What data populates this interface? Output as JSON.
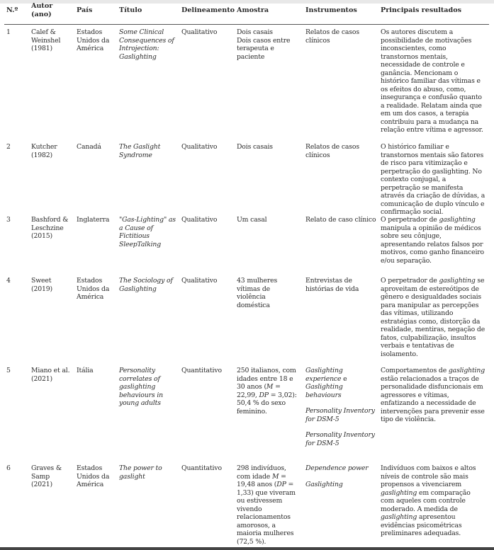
{
  "headers": [
    "N.º",
    "Autor (ano)",
    "País",
    "Título",
    "Delineamento",
    "Amostra",
    "Instrumentos",
    "Principais resultados"
  ],
  "rows": [
    {
      "n": "1",
      "autor": "Calef & Weinshel (1981)",
      "pais": "Estados Unidos da América",
      "titulo": "Some Clinical Consequences of Introjection: Gaslighting",
      "delineamento": "Qualitativo",
      "amostra": [
        {
          "t": "Dois casais\nDois casos entre terapeuta e paciente"
        }
      ],
      "instrumentos": [
        {
          "t": "Relatos de casos clínicos"
        }
      ],
      "resultados": [
        {
          "t": "Os autores discutem a possibilidade de motivações inconscientes, como transtornos mentais, necessidade de controle e ganância. Mencionam o histórico familiar das vítimas e os efeitos do abuso, como, insegurança e confusão quanto a realidade. Relatam ainda que em um dos casos, a terapia contribuiu para a mudança na relação entre vítima e agressor."
        }
      ]
    },
    {
      "n": "2",
      "autor": "Kutcher (1982)",
      "pais": "Canadá",
      "titulo": "The Gaslight Syndrome",
      "delineamento": "Qualitativo",
      "amostra": [
        {
          "t": "Dois casais"
        }
      ],
      "instrumentos": [
        {
          "t": "Relatos de casos clínicos"
        }
      ],
      "resultados": [
        {
          "t": "O histórico familiar e transtornos mentais são fatores de risco para vitimização e perpetração do gaslighting. No contexto conjugal, a perpetração se manifesta através da criação de dúvidas, a comunicação de duplo vínculo e confirmação social."
        }
      ]
    },
    {
      "n": "3",
      "autor": "Bashford & Leschzine (2015)",
      "pais": "Inglaterra",
      "titulo": "\"Gas-Lighting\" as a Cause of Fictitious SleepTalking",
      "delineamento": "Qualitativo",
      "amostra": [
        {
          "t": "Um casal"
        }
      ],
      "instrumentos": [
        {
          "t": "Relato de caso clínico"
        }
      ],
      "resultados": [
        {
          "t": "O perpetrador de "
        },
        {
          "t": "gaslighting",
          "i": true
        },
        {
          "t": " manipula a opinião de médicos sobre seu cônjuge, apresentando relatos falsos por motivos, como ganho financeiro e/ou separação."
        }
      ]
    },
    {
      "n": "4",
      "autor": "Sweet (2019)",
      "pais": "Estados Unidos da América",
      "titulo": "The Sociology of Gaslighting",
      "delineamento": "Qualitativo",
      "amostra": [
        {
          "t": "43 mulheres vítimas de violência doméstica"
        }
      ],
      "instrumentos": [
        {
          "t": "Entrevistas de histórias de vida"
        }
      ],
      "resultados": [
        {
          "t": "O perpetrador de "
        },
        {
          "t": "gaslighting",
          "i": true
        },
        {
          "t": " se aproveitam de estereótipos de gênero e desigualdades sociais para manipular as percepções das vítimas, utilizando estratégias como, distorção da realidade, mentiras, negação de fatos, culpabilização, insultos verbais e tentativas de isolamento."
        }
      ]
    },
    {
      "n": "5",
      "autor": "Miano et al. (2021)",
      "pais": "Itália",
      "titulo": "Personality correlates of gaslighting behaviours in young adults",
      "delineamento": "Quantitativo",
      "amostra": [
        {
          "t": "250 italianos, com idades entre 18 e 30 anos ("
        },
        {
          "t": "M",
          "i": true
        },
        {
          "t": " = 22,99, "
        },
        {
          "t": "DP",
          "i": true
        },
        {
          "t": " = 3,02): 50,4 % do sexo feminino."
        }
      ],
      "instrumentos": [
        {
          "t": "Gaslighting experience",
          "i": true
        },
        {
          "t": " e "
        },
        {
          "t": "Gaslighting behaviours",
          "i": true
        },
        {
          "gap": true
        },
        {
          "t": "Personality Inventory for DSM-5",
          "i": true
        },
        {
          "gap": true
        },
        {
          "t": "Personality Inventory for DSM-5",
          "i": true
        }
      ],
      "resultados": [
        {
          "t": "Comportamentos de "
        },
        {
          "t": "gaslighting",
          "i": true
        },
        {
          "t": " estão relacionados a traços de personalidade disfuncionais em agressores e vítimas, enfatizando a necessidade de intervenções para prevenir esse tipo de violência."
        }
      ]
    },
    {
      "n": "6",
      "autor": "Graves & Samp (2021)",
      "pais": "Estados Unidos da América",
      "titulo": "The power to gaslight",
      "delineamento": "Quantitativo",
      "amostra": [
        {
          "t": "298 indivíduos, com idade "
        },
        {
          "t": "M",
          "i": true
        },
        {
          "t": " = 19,48 anos ("
        },
        {
          "t": "DP",
          "i": true
        },
        {
          "t": " = 1,33) que viveram ou estivessem vivendo relacionamentos amorosos, a maioria mulheres (72,5 %)."
        }
      ],
      "instrumentos": [
        {
          "t": "Dependence power",
          "i": true
        },
        {
          "gap": true
        },
        {
          "t": "Gaslighting",
          "i": true
        }
      ],
      "resultados": [
        {
          "t": "Indivíduos com baixos e altos níveis de controle são mais propensos a vivenciarem "
        },
        {
          "t": "gaslighting",
          "i": true
        },
        {
          "t": " em comparação com aqueles com controle moderado. A medida de "
        },
        {
          "t": "gaslighting",
          "i": true
        },
        {
          "t": " apresentou evidências psicométricas preliminares adequadas."
        }
      ]
    }
  ]
}
